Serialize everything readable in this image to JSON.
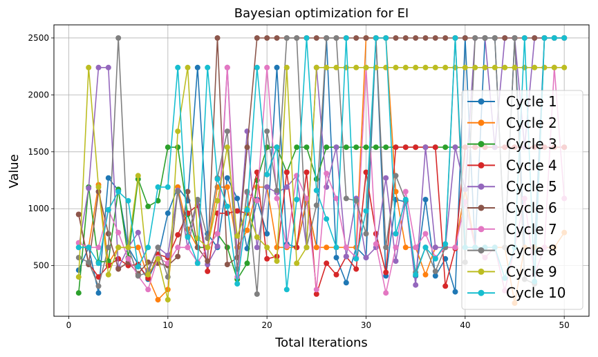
{
  "chart_data": {
    "type": "line",
    "title": "Bayesian optimization for EI",
    "xlabel": "Total Iterations",
    "ylabel": "Value",
    "xlim": [
      -1.5,
      52.5
    ],
    "ylim": [
      55,
      2615
    ],
    "xticks": [
      0,
      10,
      20,
      30,
      40,
      50
    ],
    "yticks": [
      500,
      1000,
      1500,
      2000,
      2500
    ],
    "grid": true,
    "legend_position": "right",
    "x": [
      1,
      2,
      3,
      4,
      5,
      6,
      7,
      8,
      9,
      10,
      11,
      12,
      13,
      14,
      15,
      16,
      17,
      18,
      19,
      20,
      21,
      22,
      23,
      24,
      25,
      26,
      27,
      28,
      29,
      30,
      31,
      32,
      33,
      34,
      35,
      36,
      37,
      38,
      39,
      40,
      41,
      42,
      43,
      44,
      45,
      46,
      47,
      48,
      49,
      50
    ],
    "series": [
      {
        "name": "Cycle 1",
        "color": "#1f77b4",
        "values": [
          460,
          660,
          260,
          1270,
          1160,
          660,
          510,
          380,
          570,
          960,
          1190,
          1070,
          2240,
          780,
          660,
          1270,
          1090,
          650,
          1080,
          780,
          2240,
          690,
          660,
          1060,
          660,
          2500,
          570,
          350,
          660,
          570,
          2500,
          410,
          1080,
          1060,
          410,
          1080,
          410,
          560,
          270,
          2500,
          660,
          2500,
          2500,
          660,
          2500,
          660,
          660,
          2500,
          2500,
          2500
        ]
      },
      {
        "name": "Cycle 2",
        "color": "#ff7f0e",
        "values": [
          700,
          660,
          1210,
          520,
          660,
          660,
          660,
          400,
          200,
          290,
          1190,
          820,
          660,
          660,
          1190,
          1190,
          660,
          810,
          1190,
          1190,
          660,
          660,
          660,
          1080,
          660,
          660,
          660,
          660,
          660,
          2500,
          2500,
          2500,
          1150,
          660,
          660,
          420,
          660,
          660,
          660,
          1170,
          660,
          660,
          660,
          660,
          170,
          660,
          660,
          660,
          660,
          790
        ]
      },
      {
        "name": "Cycle 3",
        "color": "#2ca02c",
        "values": [
          260,
          1190,
          530,
          540,
          1170,
          570,
          1260,
          1020,
          1070,
          1540,
          1540,
          950,
          660,
          660,
          780,
          660,
          380,
          520,
          1250,
          1540,
          1540,
          1320,
          1540,
          1540,
          1260,
          1540,
          1540,
          1540,
          1540,
          1540,
          1540,
          1540,
          1540,
          1540,
          1540,
          1540,
          1540,
          1540,
          1540,
          1540,
          1540,
          1540,
          1540,
          1540,
          1540,
          1540,
          1540,
          1540,
          1540,
          1540
        ]
      },
      {
        "name": "Cycle 4",
        "color": "#d62728",
        "values": [
          950,
          520,
          400,
          500,
          560,
          500,
          510,
          390,
          600,
          570,
          770,
          960,
          1030,
          450,
          960,
          960,
          980,
          960,
          1320,
          560,
          580,
          1320,
          660,
          1320,
          250,
          520,
          420,
          580,
          470,
          1320,
          780,
          440,
          1540,
          1540,
          1540,
          1540,
          1540,
          320,
          650,
          1540,
          1540,
          1540,
          1540,
          1540,
          1540,
          1540,
          1540,
          1540,
          1540,
          1540
        ]
      },
      {
        "name": "Cycle 5",
        "color": "#9467bd",
        "values": [
          660,
          1180,
          2240,
          2240,
          480,
          660,
          790,
          460,
          660,
          590,
          1160,
          660,
          1070,
          510,
          670,
          2240,
          570,
          1680,
          660,
          1190,
          1140,
          1190,
          1290,
          660,
          2240,
          1190,
          1540,
          580,
          1090,
          570,
          660,
          1270,
          540,
          1070,
          330,
          1540,
          660,
          660,
          1540,
          1170,
          2500,
          2500,
          1540,
          2500,
          2500,
          1540,
          2500,
          2500,
          2500,
          2500
        ]
      },
      {
        "name": "Cycle 6",
        "color": "#8c564b",
        "values": [
          950,
          510,
          1150,
          780,
          470,
          530,
          430,
          530,
          520,
          500,
          580,
          1150,
          660,
          540,
          2500,
          510,
          570,
          1540,
          2500,
          2500,
          2500,
          2500,
          2500,
          2500,
          2500,
          2500,
          2500,
          2500,
          2500,
          2500,
          2500,
          2500,
          2500,
          2500,
          2500,
          2500,
          2500,
          2500,
          2500,
          2500,
          2500,
          2500,
          2500,
          2500,
          2500,
          2500,
          2500,
          2500,
          2500,
          2500
        ]
      },
      {
        "name": "Cycle 7",
        "color": "#e377c2",
        "values": [
          700,
          660,
          660,
          990,
          790,
          560,
          410,
          290,
          570,
          520,
          660,
          660,
          530,
          660,
          780,
          2240,
          400,
          1140,
          1070,
          2240,
          1090,
          670,
          1290,
          1090,
          290,
          1310,
          1090,
          660,
          570,
          2240,
          690,
          260,
          660,
          1150,
          660,
          780,
          570,
          660,
          660,
          1060,
          660,
          570,
          660,
          280,
          660,
          1090,
          420,
          660,
          2240,
          1090
        ]
      },
      {
        "name": "Cycle 8",
        "color": "#7f7f7f",
        "values": [
          570,
          530,
          320,
          660,
          2500,
          660,
          410,
          440,
          660,
          400,
          1150,
          760,
          1080,
          740,
          1270,
          1680,
          470,
          1150,
          250,
          1680,
          1160,
          2500,
          2500,
          660,
          1030,
          2500,
          2500,
          1090,
          1070,
          780,
          2500,
          660,
          1290,
          1070,
          440,
          660,
          450,
          660,
          2500,
          530,
          2500,
          2500,
          2500,
          660,
          2500,
          380,
          340,
          2500,
          2500,
          2500
        ]
      },
      {
        "name": "Cycle 9",
        "color": "#bcbd22",
        "values": [
          400,
          2240,
          1190,
          420,
          660,
          660,
          1290,
          420,
          560,
          200,
          1680,
          2240,
          740,
          660,
          1070,
          1540,
          760,
          1000,
          750,
          660,
          540,
          2240,
          520,
          660,
          2240,
          2240,
          2240,
          2240,
          2240,
          2240,
          2240,
          2240,
          2240,
          2240,
          2240,
          2240,
          2240,
          2240,
          2240,
          2240,
          2240,
          2240,
          2240,
          2240,
          2240,
          2240,
          2240,
          2240,
          2240,
          2240
        ]
      },
      {
        "name": "Cycle 10",
        "color": "#17becf",
        "values": [
          660,
          660,
          520,
          990,
          1150,
          1070,
          490,
          660,
          1190,
          1190,
          2240,
          750,
          520,
          2240,
          1260,
          1020,
          340,
          990,
          2240,
          1300,
          1540,
          290,
          1080,
          2500,
          1160,
          910,
          660,
          2500,
          560,
          980,
          2500,
          2500,
          780,
          1080,
          420,
          660,
          560,
          690,
          2500,
          660,
          660,
          660,
          660,
          390,
          660,
          2500,
          360,
          2500,
          2500,
          2500
        ]
      }
    ]
  }
}
